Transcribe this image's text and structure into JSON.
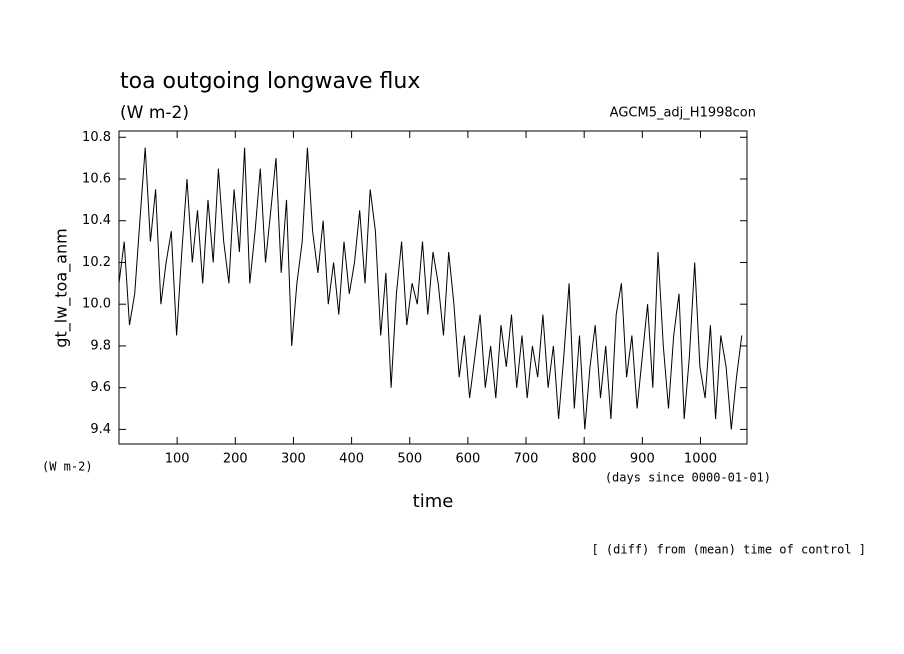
{
  "chart_data": {
    "type": "line",
    "title": "toa outgoing longwave flux",
    "subtitle": "(W m-2)",
    "run_label": "AGCM5_adj_H1998con",
    "y_label": "gt_lw_toa_anm",
    "y_unit": "(W m-2)",
    "x_unit": "(days since 0000-01-01)",
    "x_label": "time",
    "footer": "[ (diff) from (mean) time of control ]",
    "xlim": [
      0,
      1080
    ],
    "ylim": [
      9.33,
      10.83
    ],
    "xticks": [
      100,
      200,
      300,
      400,
      500,
      600,
      700,
      800,
      900,
      1000
    ],
    "yticks": [
      9.4,
      9.6,
      9.8,
      {
        "value": 10,
        "label": "10.0"
      },
      10.2,
      10.4,
      10.6,
      10.8
    ],
    "x": [
      0,
      9,
      18,
      27,
      36,
      45,
      54,
      63,
      72,
      81,
      90,
      99,
      108,
      117,
      126,
      135,
      144,
      153,
      162,
      171,
      180,
      189,
      198,
      207,
      216,
      225,
      234,
      243,
      252,
      261,
      270,
      279,
      288,
      297,
      306,
      315,
      324,
      333,
      342,
      351,
      360,
      369,
      378,
      387,
      396,
      405,
      414,
      423,
      432,
      441,
      450,
      459,
      468,
      477,
      486,
      495,
      504,
      513,
      522,
      531,
      540,
      549,
      558,
      567,
      576,
      585,
      594,
      603,
      612,
      621,
      630,
      639,
      648,
      657,
      666,
      675,
      684,
      693,
      702,
      711,
      720,
      729,
      738,
      747,
      756,
      765,
      774,
      783,
      792,
      801,
      810,
      819,
      828,
      837,
      846,
      855,
      864,
      873,
      882,
      891,
      900,
      909,
      918,
      927,
      936,
      945,
      954,
      963,
      972,
      981,
      990,
      999,
      1008,
      1017,
      1026,
      1035,
      1044,
      1053,
      1062,
      1071
    ],
    "series": [
      {
        "name": "gt_lw_toa_anm",
        "color": "#000000",
        "values": [
          10.1,
          10.3,
          9.9,
          10.05,
          10.4,
          10.75,
          10.3,
          10.55,
          10.0,
          10.2,
          10.35,
          9.85,
          10.25,
          10.6,
          10.2,
          10.45,
          10.1,
          10.5,
          10.2,
          10.65,
          10.3,
          10.1,
          10.55,
          10.25,
          10.75,
          10.1,
          10.35,
          10.65,
          10.2,
          10.45,
          10.7,
          10.15,
          10.5,
          9.8,
          10.1,
          10.3,
          10.75,
          10.35,
          10.15,
          10.4,
          10.0,
          10.2,
          9.95,
          10.3,
          10.05,
          10.2,
          10.45,
          10.1,
          10.55,
          10.35,
          9.85,
          10.15,
          9.6,
          10.05,
          10.3,
          9.9,
          10.1,
          10.0,
          10.3,
          9.95,
          10.25,
          10.1,
          9.85,
          10.25,
          10.0,
          9.65,
          9.85,
          9.55,
          9.75,
          9.95,
          9.6,
          9.8,
          9.55,
          9.9,
          9.7,
          9.95,
          9.6,
          9.85,
          9.55,
          9.8,
          9.65,
          9.95,
          9.6,
          9.8,
          9.45,
          9.75,
          10.1,
          9.5,
          9.85,
          9.4,
          9.7,
          9.9,
          9.55,
          9.8,
          9.45,
          9.95,
          10.1,
          9.65,
          9.85,
          9.5,
          9.75,
          10.0,
          9.6,
          10.25,
          9.8,
          9.5,
          9.85,
          10.05,
          9.45,
          9.75,
          10.2,
          9.7,
          9.55,
          9.9,
          9.45,
          9.85,
          9.7,
          9.4,
          9.65,
          9.85
        ]
      }
    ]
  }
}
